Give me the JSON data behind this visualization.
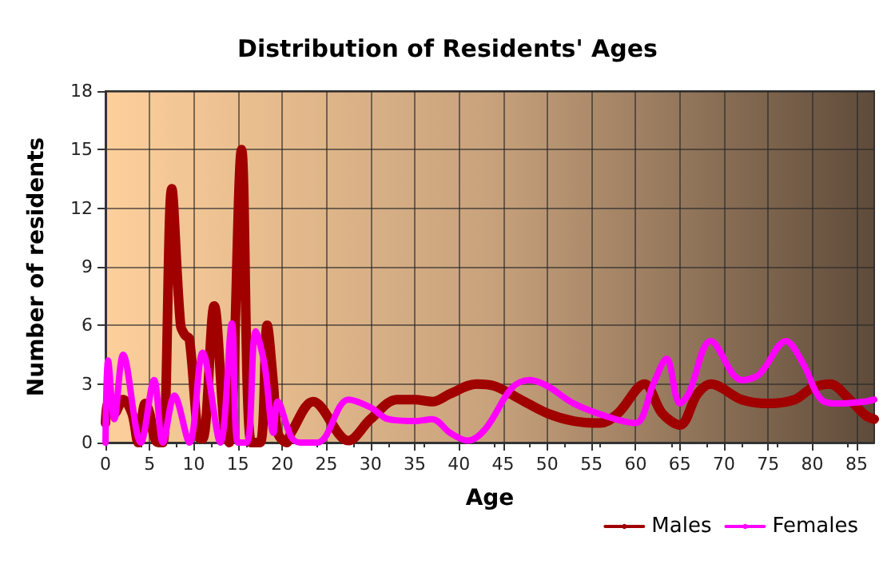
{
  "chart_data": {
    "type": "line",
    "title": "Distribution of Residents' Ages",
    "xlabel": "Age",
    "ylabel": "Number of residents",
    "xlim": [
      0,
      87
    ],
    "xticks": [
      0,
      5,
      10,
      15,
      20,
      25,
      30,
      35,
      40,
      45,
      50,
      55,
      60,
      65,
      70,
      75,
      80,
      85
    ],
    "ylim": [
      0,
      18
    ],
    "yticks": [
      0,
      3,
      6,
      9,
      12,
      15,
      18
    ],
    "grid": true,
    "legend": "bottom right",
    "marker": "none",
    "line_style": "solid",
    "series": [
      {
        "name": "Males",
        "color": "#a00000",
        "x": [
          0,
          0.3,
          1,
          2,
          3,
          3.7,
          4.5,
          5,
          5.5,
          6,
          6.5,
          7.5,
          8.5,
          9,
          9.5,
          10.5,
          11,
          12.3,
          13.5,
          14,
          15.4,
          16.5,
          17.5,
          18.3,
          19,
          19.5,
          20.5,
          21,
          23.5,
          27.5,
          30,
          33,
          35,
          37,
          39,
          42,
          44,
          47,
          50,
          53,
          56,
          58,
          61,
          63,
          65,
          67,
          68.5,
          72,
          75,
          78,
          80,
          82,
          84,
          86,
          87
        ],
        "values": [
          1,
          2,
          1.5,
          2.2,
          1.5,
          0,
          2,
          1.5,
          0.3,
          0,
          0,
          13,
          6,
          5.5,
          5.3,
          0.3,
          0.2,
          7,
          0.5,
          0,
          15,
          0,
          0,
          6,
          3,
          0.5,
          0,
          0.5,
          2.1,
          0.1,
          1.2,
          2.2,
          2.2,
          2.1,
          2.5,
          3,
          2.9,
          2.2,
          1.5,
          1.1,
          1,
          1.5,
          3,
          1.5,
          0.9,
          2.5,
          3,
          2.2,
          2,
          2.2,
          2.8,
          3,
          2.3,
          1.4,
          1.2
        ]
      },
      {
        "name": "Females",
        "color": "#ff00ff",
        "x": [
          0,
          0.3,
          1,
          2,
          4,
          5.5,
          6.5,
          7.8,
          9.5,
          11,
          13,
          14.3,
          15,
          16,
          17,
          18,
          19,
          19.5,
          21,
          22,
          24,
          27.5,
          30,
          32,
          35,
          37,
          39,
          41,
          43,
          46,
          48,
          50,
          53,
          57,
          60,
          62,
          63.5,
          65,
          66,
          68.5,
          72,
          74,
          77,
          79,
          81,
          83,
          86,
          87
        ],
        "values": [
          0,
          4.2,
          1.2,
          4.5,
          0,
          3.2,
          0,
          2.4,
          0,
          4.6,
          0,
          6.1,
          0,
          0,
          5.7,
          4,
          0.5,
          2.1,
          0.3,
          0,
          0,
          2.2,
          1.8,
          1.2,
          1.1,
          1.2,
          0.5,
          0.1,
          0.7,
          2.8,
          3.2,
          2.9,
          2,
          1.3,
          1,
          3,
          4.3,
          2,
          2.5,
          5.2,
          3.2,
          3.5,
          5.2,
          4,
          2.2,
          2,
          2.1,
          2.2
        ]
      }
    ]
  }
}
